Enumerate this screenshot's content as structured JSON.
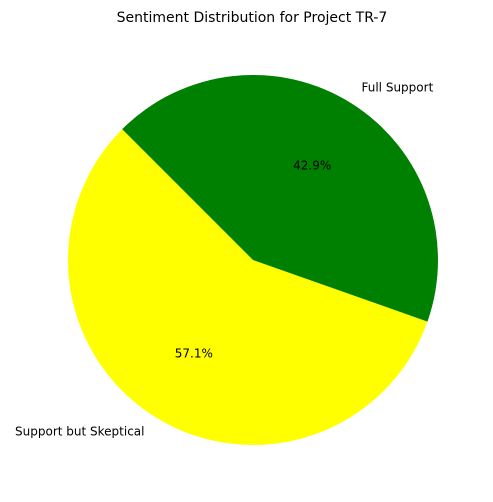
{
  "chart_data": {
    "type": "pie",
    "title": "Sentiment Distribution for Project TR-7",
    "start_angle_deg": 135,
    "direction": "counterclockwise",
    "legend": "none",
    "slices": [
      {
        "label": "Support but Skeptical",
        "value": 57.1,
        "pct_label": "57.1%",
        "color": "#ffff00"
      },
      {
        "label": "Full Support",
        "value": 42.9,
        "pct_label": "42.9%",
        "color": "#008000"
      }
    ]
  }
}
